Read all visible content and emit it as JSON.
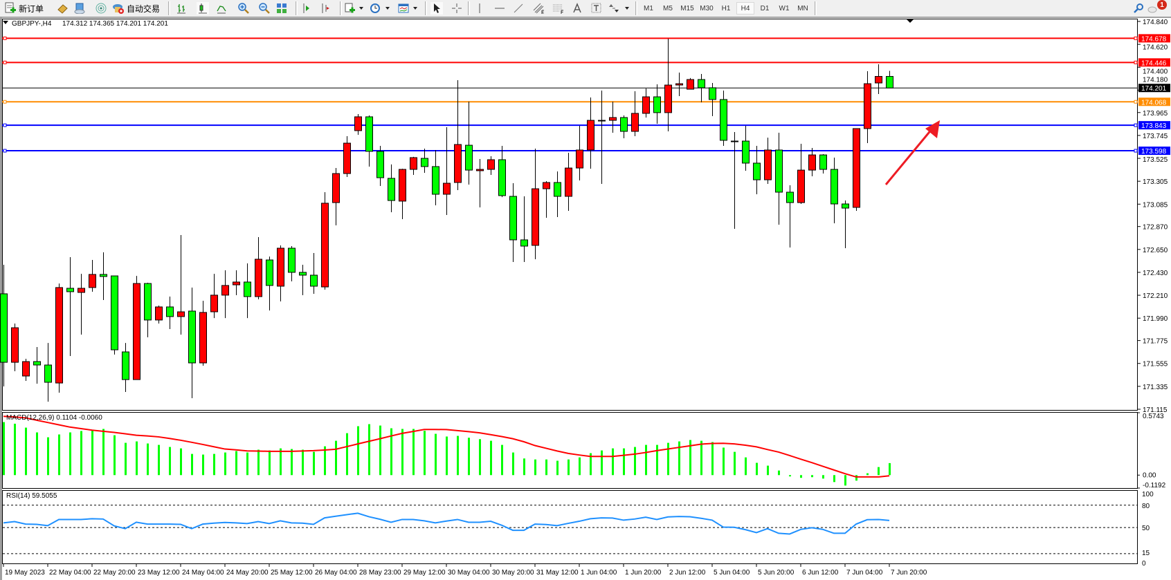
{
  "toolbar": {
    "new_order": "新订单",
    "auto_trading": "自动交易",
    "timeframes": [
      "M1",
      "M5",
      "M15",
      "M30",
      "H1",
      "H4",
      "D1",
      "W1",
      "MN"
    ],
    "active_timeframe": "H4",
    "notification_count": "1",
    "icons": [
      "new-order-icon",
      "history-icon",
      "terminal-icon",
      "signals-icon",
      "auto-trading-icon",
      "bar-chart-icon",
      "candlestick-icon",
      "line-chart-icon",
      "zoom-in-icon",
      "zoom-out-icon",
      "tile-windows-icon",
      "auto-scroll-icon",
      "chart-shift-icon",
      "add-indicator-icon",
      "periods-icon",
      "templates-icon",
      "cursor-icon",
      "crosshair-icon",
      "vertical-line-icon",
      "horizontal-line-icon",
      "trendline-icon",
      "equidistant-channel-icon",
      "fibonacci-icon",
      "text-icon",
      "text-label-icon",
      "arrows-icon",
      "search-icon",
      "notification-icon"
    ]
  },
  "chart_header": {
    "symbol": "GBPJPY-,H4",
    "ohlc": "174.312 174.365 174.201 174.201"
  },
  "colors": {
    "bull": "#ff0000",
    "bear": "#00ff00",
    "macd_histogram": "#00ff00",
    "macd_signal": "#ff0000",
    "rsi_line": "#1e90ff",
    "annotation_arrow": "#ed1c24"
  },
  "chart_data": [
    {
      "type": "candlestick",
      "title": "GBPJPY-,H4",
      "ylim": [
        171.115,
        174.84
      ],
      "grid": false,
      "candle_fields": [
        "open",
        "high",
        "low",
        "close"
      ],
      "candles": [
        [
          172.224,
          172.503,
          171.334,
          171.566
        ],
        [
          171.566,
          171.938,
          171.48,
          171.898
        ],
        [
          171.434,
          171.6,
          171.387,
          171.573
        ],
        [
          171.573,
          171.713,
          171.361,
          171.54
        ],
        [
          171.54,
          171.752,
          171.188,
          171.374
        ],
        [
          171.367,
          172.323,
          171.274,
          172.284
        ],
        [
          172.277,
          172.576,
          171.626,
          172.244
        ],
        [
          172.237,
          172.416,
          171.832,
          172.277
        ],
        [
          172.284,
          172.549,
          172.244,
          172.41
        ],
        [
          172.41,
          172.622,
          172.164,
          172.39
        ],
        [
          172.396,
          172.396,
          171.64,
          171.686
        ],
        [
          171.666,
          171.752,
          171.281,
          171.4
        ],
        [
          171.4,
          172.396,
          171.4,
          172.323
        ],
        [
          172.323,
          172.33,
          171.806,
          171.972
        ],
        [
          171.972,
          172.111,
          171.938,
          172.098
        ],
        [
          172.098,
          172.197,
          171.885,
          172.005
        ],
        [
          172.005,
          172.788,
          171.832,
          172.051
        ],
        [
          172.058,
          172.284,
          171.221,
          171.56
        ],
        [
          171.56,
          172.157,
          171.533,
          172.045
        ],
        [
          172.051,
          172.416,
          171.991,
          172.211
        ],
        [
          172.211,
          172.45,
          171.991,
          172.304
        ],
        [
          172.31,
          172.45,
          172.211,
          172.337
        ],
        [
          172.337,
          172.516,
          171.991,
          172.197
        ],
        [
          172.197,
          172.768,
          172.171,
          172.556
        ],
        [
          172.549,
          172.582,
          172.064,
          172.304
        ],
        [
          172.297,
          172.689,
          172.151,
          172.662
        ],
        [
          172.662,
          172.682,
          172.343,
          172.43
        ],
        [
          172.43,
          172.503,
          172.211,
          172.403
        ],
        [
          172.403,
          172.616,
          172.224,
          172.297
        ],
        [
          172.29,
          173.2,
          172.264,
          173.094
        ],
        [
          173.1,
          173.432,
          172.881,
          173.379
        ],
        [
          173.379,
          173.738,
          173.346,
          173.671
        ],
        [
          173.791,
          173.95,
          173.751,
          173.924
        ],
        [
          173.924,
          173.937,
          173.446,
          173.592
        ],
        [
          173.592,
          173.645,
          173.26,
          173.339
        ],
        [
          173.333,
          173.466,
          173.007,
          173.12
        ],
        [
          173.114,
          173.425,
          172.941,
          173.419
        ],
        [
          173.419,
          173.539,
          173.366,
          173.532
        ],
        [
          173.525,
          173.618,
          173.386,
          173.446
        ],
        [
          173.446,
          173.605,
          173.074,
          173.18
        ],
        [
          173.18,
          173.824,
          172.981,
          173.286
        ],
        [
          173.293,
          174.276,
          173.22,
          173.658
        ],
        [
          173.651,
          174.07,
          173.273,
          173.412
        ],
        [
          173.406,
          173.519,
          173.054,
          173.419
        ],
        [
          173.419,
          173.545,
          173.366,
          173.512
        ],
        [
          173.512,
          173.645,
          173.153,
          173.167
        ],
        [
          173.16,
          173.286,
          172.529,
          172.742
        ],
        [
          172.742,
          173.16,
          172.529,
          172.682
        ],
        [
          172.689,
          173.618,
          172.556,
          173.233
        ],
        [
          173.233,
          173.306,
          172.954,
          173.293
        ],
        [
          173.293,
          173.399,
          172.961,
          173.16
        ],
        [
          173.16,
          173.578,
          173.021,
          173.432
        ],
        [
          173.432,
          173.837,
          173.313,
          173.605
        ],
        [
          173.605,
          174.11,
          173.426,
          173.89
        ],
        [
          173.89,
          174.176,
          173.28,
          173.888
        ],
        [
          173.89,
          174.07,
          173.771,
          173.917
        ],
        [
          173.917,
          173.937,
          173.718,
          173.784
        ],
        [
          173.784,
          174.169,
          173.738,
          173.957
        ],
        [
          173.957,
          174.196,
          173.917,
          174.116
        ],
        [
          174.116,
          174.236,
          173.857,
          173.964
        ],
        [
          173.964,
          174.674,
          173.784,
          174.229
        ],
        [
          174.229,
          174.349,
          174.123,
          174.242
        ],
        [
          174.189,
          174.296,
          174.189,
          174.282
        ],
        [
          174.282,
          174.335,
          174.063,
          174.203
        ],
        [
          174.203,
          174.249,
          173.93,
          174.09
        ],
        [
          174.09,
          174.176,
          173.645,
          173.698
        ],
        [
          173.691,
          173.778,
          172.848,
          173.689
        ],
        [
          173.691,
          173.837,
          173.406,
          173.479
        ],
        [
          173.479,
          173.645,
          173.18,
          173.319
        ],
        [
          173.319,
          173.724,
          173.28,
          173.605
        ],
        [
          173.605,
          173.771,
          172.888,
          173.2
        ],
        [
          173.2,
          173.266,
          172.669,
          173.1
        ],
        [
          173.1,
          173.665,
          173.087,
          173.412
        ],
        [
          173.412,
          173.625,
          173.353,
          173.558
        ],
        [
          173.558,
          173.565,
          173.379,
          173.419
        ],
        [
          173.419,
          173.532,
          172.901,
          173.087
        ],
        [
          173.087,
          173.12,
          172.662,
          173.047
        ],
        [
          173.054,
          173.811,
          173.021,
          173.811
        ],
        [
          173.811,
          174.362,
          173.671,
          174.242
        ],
        [
          174.249,
          174.428,
          174.143,
          174.312
        ],
        [
          174.312,
          174.365,
          174.201,
          174.201
        ]
      ],
      "price_ticks": [
        "174.840",
        "174.620",
        "174.400",
        "174.180",
        "173.965",
        "173.745",
        "173.525",
        "173.305",
        "173.085",
        "172.870",
        "172.650",
        "172.430",
        "172.210",
        "171.990",
        "171.775",
        "171.555",
        "171.335",
        "171.115"
      ],
      "horizontal_lines": [
        {
          "value": "174.678",
          "color": "#ff0000"
        },
        {
          "value": "174.446",
          "color": "#ff0000"
        },
        {
          "value": "174.068",
          "color": "#ff8c00"
        },
        {
          "value": "173.843",
          "color": "#0000ff"
        },
        {
          "value": "173.598",
          "color": "#0000ff"
        }
      ],
      "current_price": "174.201",
      "time_labels": [
        "19 May 2023",
        "22 May 04:00",
        "22 May 20:00",
        "23 May 12:00",
        "24 May 04:00",
        "24 May 20:00",
        "25 May 12:00",
        "26 May 04:00",
        "28 May 23:00",
        "29 May 12:00",
        "30 May 04:00",
        "30 May 20:00",
        "31 May 12:00",
        "1 Jun 04:00",
        "1 Jun 20:00",
        "2 Jun 12:00",
        "5 Jun 04:00",
        "5 Jun 20:00",
        "6 Jun 12:00",
        "7 Jun 04:00",
        "7 Jun 20:00"
      ],
      "annotation": "up-arrow"
    },
    {
      "type": "bar+line",
      "title": "MACD(12,26,9) 0.1104 -0.0060",
      "ylim": [
        -0.1192,
        0.5743
      ],
      "axis_labels": [
        "0.5743",
        "0.00",
        "-0.1192"
      ],
      "histogram": [
        0.488,
        0.473,
        0.437,
        0.393,
        0.348,
        0.374,
        0.393,
        0.406,
        0.416,
        0.425,
        0.367,
        0.297,
        0.31,
        0.291,
        0.278,
        0.259,
        0.246,
        0.195,
        0.189,
        0.195,
        0.208,
        0.221,
        0.208,
        0.234,
        0.227,
        0.246,
        0.24,
        0.234,
        0.214,
        0.265,
        0.316,
        0.386,
        0.45,
        0.469,
        0.456,
        0.431,
        0.425,
        0.425,
        0.408,
        0.38,
        0.355,
        0.361,
        0.344,
        0.331,
        0.316,
        0.278,
        0.208,
        0.153,
        0.144,
        0.144,
        0.132,
        0.144,
        0.163,
        0.202,
        0.227,
        0.246,
        0.246,
        0.259,
        0.278,
        0.278,
        0.297,
        0.31,
        0.323,
        0.316,
        0.304,
        0.253,
        0.214,
        0.163,
        0.113,
        0.087,
        0.042,
        -0.012,
        -0.025,
        -0.019,
        -0.032,
        -0.064,
        -0.096,
        -0.051,
        0.017,
        0.074,
        0.1104
      ],
      "signal": [
        0.541,
        0.535,
        0.527,
        0.505,
        0.484,
        0.463,
        0.442,
        0.428,
        0.414,
        0.403,
        0.393,
        0.38,
        0.367,
        0.36,
        0.352,
        0.337,
        0.321,
        0.302,
        0.282,
        0.261,
        0.24,
        0.232,
        0.223,
        0.221,
        0.219,
        0.219,
        0.219,
        0.222,
        0.225,
        0.231,
        0.238,
        0.262,
        0.287,
        0.311,
        0.335,
        0.36,
        0.384,
        0.402,
        0.42,
        0.42,
        0.419,
        0.41,
        0.4,
        0.389,
        0.372,
        0.355,
        0.335,
        0.307,
        0.272,
        0.247,
        0.222,
        0.2,
        0.185,
        0.172,
        0.172,
        0.172,
        0.182,
        0.193,
        0.208,
        0.225,
        0.24,
        0.255,
        0.27,
        0.285,
        0.291,
        0.293,
        0.287,
        0.275,
        0.26,
        0.235,
        0.212,
        0.18,
        0.147,
        0.115,
        0.081,
        0.047,
        0.013,
        -0.017,
        -0.017,
        -0.017,
        -0.006
      ]
    },
    {
      "type": "line",
      "title": "RSI(14) 59.5055",
      "ylim": [
        0,
        100
      ],
      "axis_labels": [
        "100",
        "80",
        "50",
        "15",
        "0"
      ],
      "levels": [
        80,
        50,
        15
      ],
      "values": [
        56.2,
        58.0,
        54.6,
        54.3,
        52.5,
        60.8,
        60.8,
        60.8,
        61.8,
        61.4,
        52.2,
        48.5,
        57.1,
        54.6,
        54.6,
        54.6,
        54.3,
        48.5,
        54.6,
        55.9,
        56.8,
        56.2,
        55.3,
        58.0,
        55.3,
        59.0,
        56.2,
        55.9,
        54.3,
        63.0,
        65.2,
        67.3,
        69.2,
        64.5,
        61.1,
        57.1,
        60.8,
        60.8,
        59.0,
        56.2,
        58.7,
        60.8,
        57.1,
        57.1,
        58.4,
        53.1,
        46.3,
        46.3,
        54.6,
        54.0,
        52.5,
        55.6,
        58.4,
        61.8,
        63.0,
        62.7,
        59.9,
        61.4,
        63.9,
        60.8,
        64.2,
        64.8,
        64.5,
        62.4,
        59.9,
        50.6,
        50.3,
        47.2,
        43.2,
        48.5,
        42.3,
        41.3,
        47.5,
        49.7,
        47.5,
        42.3,
        42.3,
        54.6,
        60.5,
        60.8,
        59.5055
      ]
    }
  ]
}
